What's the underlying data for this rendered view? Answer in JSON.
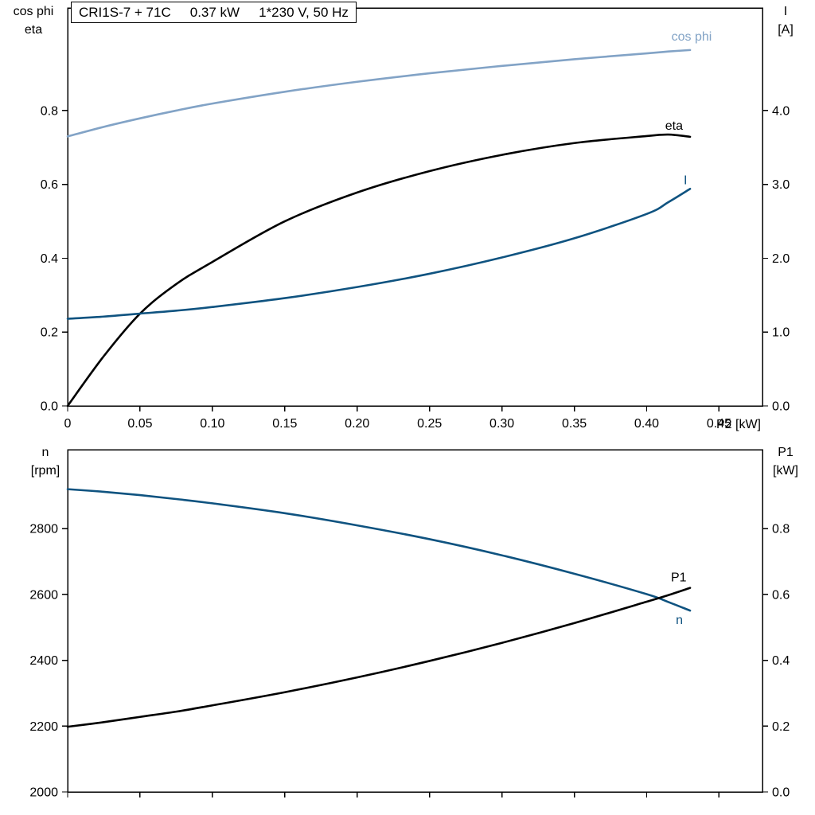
{
  "title_box": {
    "model": "CRI1S-7 + 71C",
    "power": "0.37 kW",
    "supply": "1*230 V, 50 Hz"
  },
  "captions": {
    "top_left_line1": "cos phi",
    "top_left_line2": "eta",
    "top_right_line1": "I",
    "top_right_line2": "[A]",
    "bottom_left_line1": "n",
    "bottom_left_line2": "[rpm]",
    "bottom_right_line1": "P1",
    "bottom_right_line2": "[kW]",
    "x_axis_label": "P2 [kW]"
  },
  "colors": {
    "light_blue": "#82a3c6",
    "dark_blue": "#0f5380",
    "black": "#000000",
    "frame": "#000000",
    "text": "#000000"
  },
  "chart_data": [
    {
      "type": "line",
      "title": "CRI1S-7 + 71C  0.37 kW  1*230 V, 50 Hz",
      "xlabel": "P2 [kW]",
      "ylabel_left": "cos phi, eta",
      "ylabel_right": "I [A]",
      "grid": false,
      "legend_position": "none",
      "xlim": [
        0,
        0.48
      ],
      "ylim_left": [
        0,
        1.078
      ],
      "ylim_right": [
        0,
        5.39
      ],
      "x_ticks": [
        0,
        0.05,
        0.1,
        0.15,
        0.2,
        0.25,
        0.3,
        0.35,
        0.4,
        0.45
      ],
      "x_tick_labels": [
        "0",
        "0.05",
        "0.10",
        "0.15",
        "0.20",
        "0.25",
        "0.30",
        "0.35",
        "0.40",
        "0.45"
      ],
      "show_x_tick_labels": true,
      "left_ticks": [
        0,
        0.2,
        0.4,
        0.6,
        0.8
      ],
      "left_tick_labels": [
        "0.0",
        "0.2",
        "0.4",
        "0.6",
        "0.8"
      ],
      "right_ticks": [
        0,
        1,
        2,
        3,
        4
      ],
      "right_tick_labels": [
        "0.0",
        "1.0",
        "2.0",
        "3.0",
        "4.0"
      ],
      "x": [
        0,
        0.025,
        0.05,
        0.075,
        0.1,
        0.15,
        0.2,
        0.25,
        0.3,
        0.35,
        0.4,
        0.415,
        0.43
      ],
      "series": [
        {
          "name": "cos phi",
          "axis": "left",
          "color": "light_blue",
          "values": [
            0.73,
            0.756,
            0.779,
            0.8,
            0.819,
            0.851,
            0.878,
            0.901,
            0.921,
            0.939,
            0.955,
            0.96,
            0.964
          ],
          "label": {
            "text": "cos phi",
            "x": 0.445,
            "y": 0.99,
            "anchor": "end"
          }
        },
        {
          "name": "eta",
          "axis": "left",
          "color": "black",
          "values": [
            0.0,
            0.135,
            0.25,
            0.33,
            0.39,
            0.5,
            0.578,
            0.636,
            0.68,
            0.712,
            0.731,
            0.735,
            0.729
          ],
          "label": {
            "text": "eta",
            "x": 0.425,
            "y": 0.748,
            "anchor": "end"
          }
        },
        {
          "name": "I",
          "axis": "right",
          "color": "dark_blue",
          "values": [
            1.18,
            1.21,
            1.25,
            1.29,
            1.34,
            1.46,
            1.61,
            1.79,
            2.01,
            2.27,
            2.6,
            2.76,
            2.94
          ],
          "label": {
            "text": "I",
            "x": 0.428,
            "y": 3.0,
            "anchor": "end"
          }
        }
      ]
    },
    {
      "type": "line",
      "title": "",
      "xlabel": "",
      "ylabel_left": "n [rpm]",
      "ylabel_right": "P1 [kW]",
      "grid": false,
      "legend_position": "none",
      "xlim": [
        0,
        0.48
      ],
      "ylim_left": [
        2000,
        3040
      ],
      "ylim_right": [
        0,
        1.04
      ],
      "x_ticks": [
        0,
        0.05,
        0.1,
        0.15,
        0.2,
        0.25,
        0.3,
        0.35,
        0.4,
        0.45
      ],
      "x_tick_labels": [],
      "show_x_tick_labels": false,
      "left_ticks": [
        2000,
        2200,
        2400,
        2600,
        2800
      ],
      "left_tick_labels": [
        "2000",
        "2200",
        "2400",
        "2600",
        "2800"
      ],
      "right_ticks": [
        0,
        0.2,
        0.4,
        0.6,
        0.8
      ],
      "right_tick_labels": [
        "0.0",
        "0.2",
        "0.4",
        "0.6",
        "0.8"
      ],
      "x": [
        0,
        0.025,
        0.05,
        0.075,
        0.1,
        0.15,
        0.2,
        0.25,
        0.3,
        0.35,
        0.4,
        0.415,
        0.43
      ],
      "series": [
        {
          "name": "n",
          "axis": "left",
          "color": "dark_blue",
          "values": [
            2920,
            2912,
            2902,
            2890,
            2877,
            2847,
            2810,
            2768,
            2719,
            2663,
            2601,
            2577,
            2551
          ],
          "label": {
            "text": "n",
            "x": 0.425,
            "y": 2510,
            "anchor": "end"
          }
        },
        {
          "name": "P1",
          "axis": "right",
          "color": "black",
          "values": [
            0.198,
            0.212,
            0.228,
            0.244,
            0.263,
            0.303,
            0.348,
            0.398,
            0.453,
            0.513,
            0.578,
            0.598,
            0.62
          ],
          "label": {
            "text": "P1",
            "x": 0.4275,
            "y": 0.64,
            "anchor": "end"
          }
        }
      ]
    }
  ]
}
